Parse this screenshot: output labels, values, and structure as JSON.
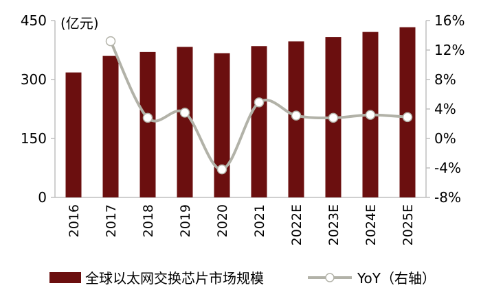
{
  "chart_data": {
    "type": "bar",
    "categories": [
      "2016",
      "2017",
      "2018",
      "2019",
      "2020",
      "2021",
      "2022E",
      "2023E",
      "2024E",
      "2025E"
    ],
    "series": [
      {
        "name": "全球以太网交换芯片市场规模",
        "type": "bar",
        "axis": "left",
        "color": "#6b0f0f",
        "values": [
          318,
          360,
          370,
          383,
          367,
          385,
          397,
          408,
          421,
          433
        ]
      },
      {
        "name": "YoY（右轴）",
        "type": "line",
        "axis": "right",
        "color": "#b2b2a8",
        "values": [
          null,
          13.2,
          2.8,
          3.5,
          -4.2,
          4.9,
          3.1,
          2.8,
          3.2,
          2.9
        ]
      }
    ],
    "unit_label": "(亿元)",
    "ylim_left": [
      0,
      450
    ],
    "yticks_left": [
      "0",
      "150",
      "300",
      "450"
    ],
    "ylim_right": [
      -8,
      16
    ],
    "yticks_right": [
      "-8%",
      "-4%",
      "0%",
      "4%",
      "8%",
      "12%",
      "16%"
    ],
    "grid": false,
    "legend_position": "bottom"
  }
}
